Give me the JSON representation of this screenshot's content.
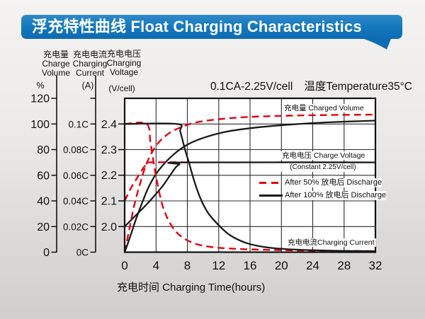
{
  "banner": {
    "title": "浮充特性曲线 Float Charging Characteristics"
  },
  "colors": {
    "banner_blue": "#1277bd",
    "curve_red": "#e60012",
    "curve_black": "#1a1a1a"
  },
  "chart_data": {
    "type": "line",
    "title": "浮充特性曲线 Float Charging Characteristics",
    "annotation": {
      "condition": "0.1CA-2.25V/cell",
      "temperature": "温度Temperature35°C"
    },
    "x_axis": {
      "title": "充电时间 Charging Time(hours)",
      "ticks": [
        "0",
        "4",
        "8",
        "12",
        "16",
        "20",
        "24",
        "28",
        "32"
      ],
      "range_hours": [
        0,
        32
      ],
      "grid": true
    },
    "y_axes": [
      {
        "id": "volume",
        "label_cn": "充电量",
        "label_en_lines": [
          "Charge",
          "Volume"
        ],
        "unit": "%",
        "ticks": [
          "120",
          "100",
          "80",
          "60",
          "40",
          "20",
          "0"
        ],
        "range": [
          0,
          120
        ]
      },
      {
        "id": "current",
        "label_cn": "充电电流",
        "label_en_lines": [
          "Charging",
          "Current"
        ],
        "unit": "(A)",
        "ticks": [
          "0.1C",
          "0.08C",
          "0.06C",
          "0.04C",
          "0.02C",
          "0C"
        ],
        "range_c": [
          0,
          0.1
        ]
      },
      {
        "id": "voltage",
        "label_cn": "充电电压",
        "label_en_lines": [
          "Charging",
          "Voltage"
        ],
        "unit": "(V/cell)",
        "ticks": [
          "2.4",
          "2.3",
          "2.2",
          "2.1",
          "2.0"
        ],
        "range_v": [
          1.94,
          2.46
        ]
      }
    ],
    "curve_labels": {
      "charged_volume": "充电量 Charged Volume",
      "charge_voltage_line1": "充电电压 Charge Voltage",
      "charge_voltage_line2": "(Constant 2.25V/cell)",
      "charging_current": "充电电流Charging Current"
    },
    "legend": [
      {
        "id": "after-50-discharge",
        "color": "#e60012",
        "style": "dashed",
        "label": "After 50%  放电后 Discharge"
      },
      {
        "id": "after-100-discharge",
        "color": "#1a1a1a",
        "style": "solid",
        "label": "After 100%  放电后 Discharge"
      }
    ],
    "series": [
      {
        "name": "charged-volume-after-50",
        "axis": "volume",
        "color": "#e60012",
        "dashed": true,
        "points": [
          [
            0,
            0
          ],
          [
            0.6,
            18
          ],
          [
            1.2,
            36
          ],
          [
            1.9,
            52
          ],
          [
            2.6,
            66
          ],
          [
            3.4,
            77
          ],
          [
            4.4,
            86
          ],
          [
            5.6,
            92.5
          ],
          [
            7,
            97
          ],
          [
            8.8,
            100.8
          ],
          [
            11,
            103
          ],
          [
            14,
            104.8
          ],
          [
            18,
            106
          ],
          [
            24,
            106.8
          ],
          [
            32,
            107.3
          ]
        ]
      },
      {
        "name": "charged-volume-after-100",
        "axis": "volume",
        "color": "#1a1a1a",
        "dashed": false,
        "points": [
          [
            0,
            0
          ],
          [
            0.7,
            12
          ],
          [
            1.4,
            25
          ],
          [
            2.2,
            38
          ],
          [
            3,
            50
          ],
          [
            4,
            61
          ],
          [
            5.2,
            70
          ],
          [
            6.6,
            78
          ],
          [
            8.2,
            84.5
          ],
          [
            10.2,
            89.5
          ],
          [
            13,
            94
          ],
          [
            16.5,
            97
          ],
          [
            21,
            99.5
          ],
          [
            26,
            101.3
          ],
          [
            32,
            102.6
          ]
        ]
      },
      {
        "name": "charge-voltage-after-50",
        "axis": "voltage",
        "color": "#e60012",
        "dashed": true,
        "points": [
          [
            0,
            2.1
          ],
          [
            0.8,
            2.15
          ],
          [
            1.6,
            2.19
          ],
          [
            2.2,
            2.22
          ],
          [
            2.7,
            2.24
          ],
          [
            3.2,
            2.25
          ],
          [
            8.6,
            2.25
          ]
        ]
      },
      {
        "name": "charge-voltage-after-100",
        "axis": "voltage",
        "color": "#1a1a1a",
        "dashed": false,
        "points": [
          [
            0,
            2.0
          ],
          [
            1.3,
            2.04
          ],
          [
            2.6,
            2.08
          ],
          [
            3.8,
            2.12
          ],
          [
            4.9,
            2.16
          ],
          [
            5.8,
            2.2
          ],
          [
            6.5,
            2.23
          ],
          [
            7,
            2.243
          ],
          [
            7.5,
            2.25
          ],
          [
            32,
            2.25
          ]
        ]
      },
      {
        "name": "charging-current-after-50",
        "axis": "current",
        "color": "#e60012",
        "dashed": true,
        "points": [
          [
            0,
            0.1
          ],
          [
            2.8,
            0.1
          ],
          [
            3.3,
            0.085
          ],
          [
            3.8,
            0.066
          ],
          [
            4.3,
            0.05
          ],
          [
            4.8,
            0.037
          ],
          [
            5.5,
            0.026
          ],
          [
            6.4,
            0.017
          ],
          [
            7.5,
            0.011
          ],
          [
            8.8,
            0.007
          ],
          [
            10.5,
            0.0045
          ],
          [
            13,
            0.003
          ],
          [
            17,
            0.002
          ],
          [
            24,
            0.0012
          ],
          [
            32,
            0.0008
          ]
        ]
      },
      {
        "name": "charging-current-after-100",
        "axis": "current",
        "color": "#1a1a1a",
        "dashed": false,
        "points": [
          [
            0,
            0.1
          ],
          [
            6.7,
            0.1
          ],
          [
            7.1,
            0.094
          ],
          [
            7.7,
            0.08
          ],
          [
            8.2,
            0.07
          ],
          [
            8.8,
            0.057
          ],
          [
            9.6,
            0.043
          ],
          [
            10.6,
            0.031
          ],
          [
            12,
            0.021
          ],
          [
            13.5,
            0.013
          ],
          [
            15.6,
            0.007
          ],
          [
            18.2,
            0.0037
          ],
          [
            21.8,
            0.002
          ],
          [
            27,
            0.0011
          ],
          [
            32,
            0.0008
          ]
        ]
      }
    ]
  }
}
